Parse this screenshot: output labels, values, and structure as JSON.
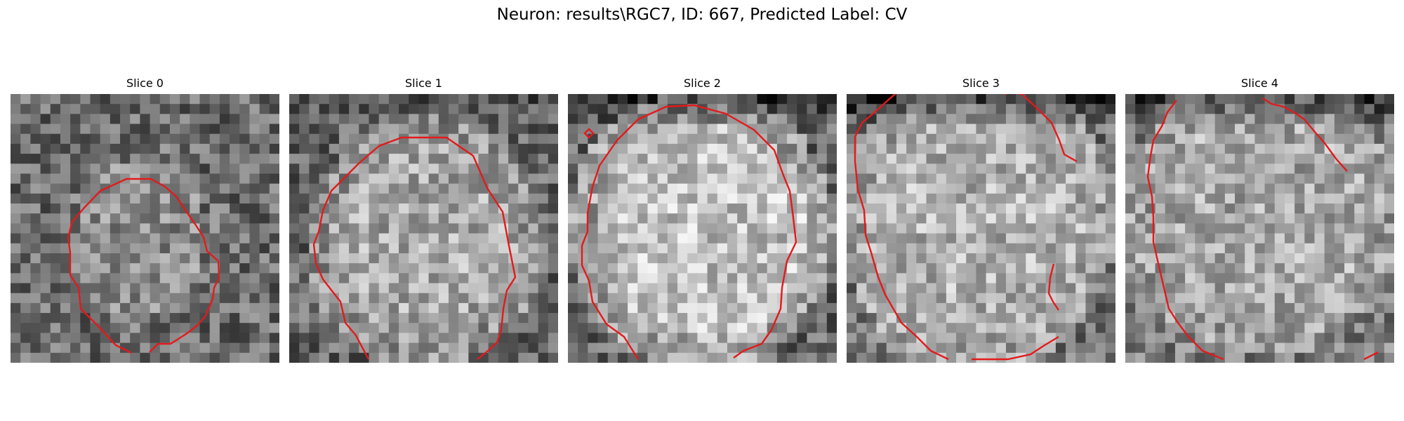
{
  "figure": {
    "title": "Neuron: results\\RGC7, ID: 667, Predicted Label: CV",
    "contour_color": "#e31a1c",
    "colormap": "gray"
  },
  "slices": [
    {
      "title": "Slice 0"
    },
    {
      "title": "Slice 1"
    },
    {
      "title": "Slice 2"
    },
    {
      "title": "Slice 3"
    },
    {
      "title": "Slice 4"
    }
  ]
}
